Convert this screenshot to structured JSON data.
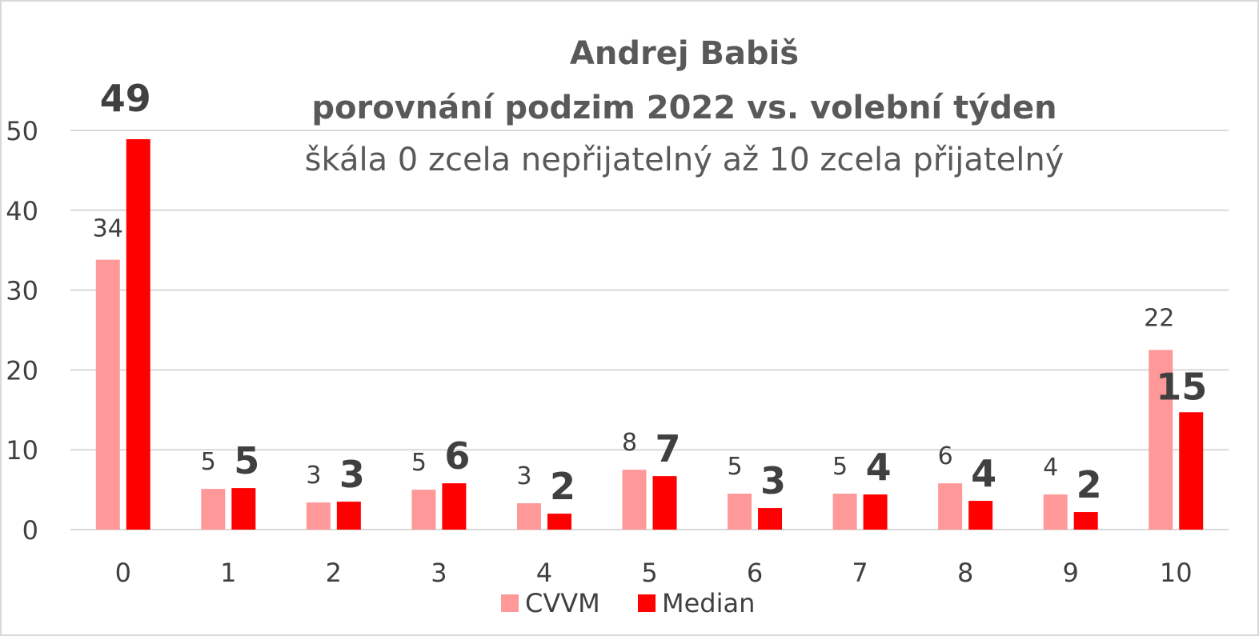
{
  "chart_data": {
    "type": "bar",
    "title": "Andrej Babiš",
    "subtitle_line1": "porovnání podzim 2022 vs. volební týden",
    "subtitle_line2": "škála 0 zcela nepřijatelný až 10 zcela přijatelný",
    "categories": [
      "0",
      "1",
      "2",
      "3",
      "4",
      "5",
      "6",
      "7",
      "8",
      "9",
      "10"
    ],
    "ylim": [
      0,
      50
    ],
    "yticks": [
      0,
      10,
      20,
      30,
      40,
      50
    ],
    "grid": true,
    "legend_position": "bottom",
    "series": [
      {
        "name": "CVVM",
        "color": "#ff9999",
        "values": [
          33.8,
          5.1,
          3.4,
          5.0,
          3.3,
          7.5,
          4.5,
          4.5,
          5.8,
          4.4,
          22.5
        ],
        "labels": [
          "34",
          "5",
          "3",
          "5",
          "3",
          "8",
          "5",
          "5",
          "6",
          "4",
          "22"
        ]
      },
      {
        "name": "Median",
        "color": "#ff0000",
        "values": [
          48.9,
          5.2,
          3.5,
          5.8,
          2.0,
          6.7,
          2.7,
          4.4,
          3.6,
          2.2,
          14.7
        ],
        "labels": [
          "49",
          "5",
          "3",
          "6",
          "2",
          "7",
          "3",
          "4",
          "4",
          "2",
          "15"
        ]
      }
    ]
  }
}
